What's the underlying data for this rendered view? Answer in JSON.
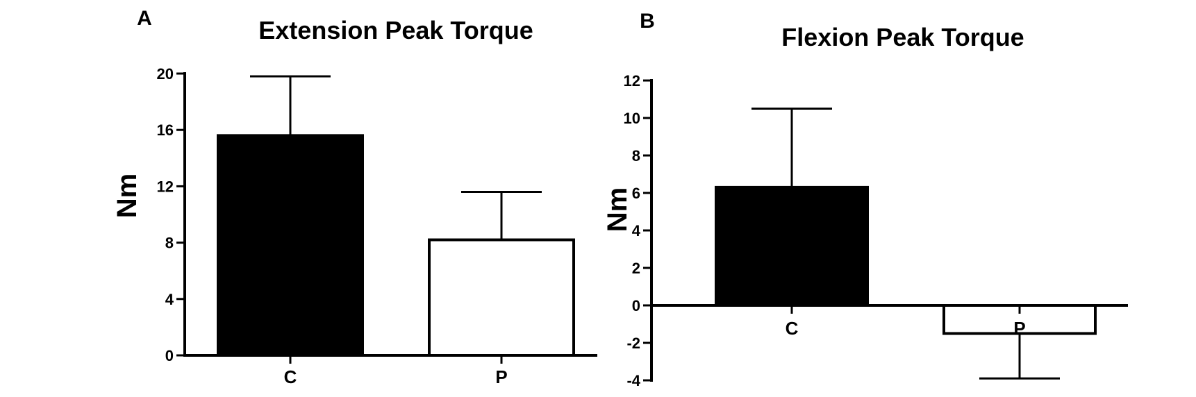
{
  "chart_data": [
    {
      "type": "bar",
      "panel": "A",
      "title": "Extension Peak Torque",
      "ylabel": "Nm",
      "xlabel": "",
      "categories": [
        "C",
        "P"
      ],
      "values": [
        15.6,
        8.2
      ],
      "error_upper": [
        19.8,
        11.6
      ],
      "bar_colors": [
        "#000000",
        "#ffffff"
      ],
      "ylim": [
        0,
        20
      ],
      "yticks": [
        0,
        4,
        8,
        12,
        16,
        20
      ],
      "grid": false
    },
    {
      "type": "bar",
      "panel": "B",
      "title": "Flexion Peak Torque",
      "ylabel": "Nm",
      "xlabel": "",
      "categories": [
        "C",
        "P"
      ],
      "values": [
        6.3,
        -1.5
      ],
      "error_upper": [
        10.5,
        -3.9
      ],
      "bar_colors": [
        "#000000",
        "#ffffff"
      ],
      "ylim": [
        -4,
        12
      ],
      "yticks": [
        -4,
        -2,
        0,
        2,
        4,
        6,
        8,
        10,
        12
      ],
      "grid": false
    }
  ]
}
